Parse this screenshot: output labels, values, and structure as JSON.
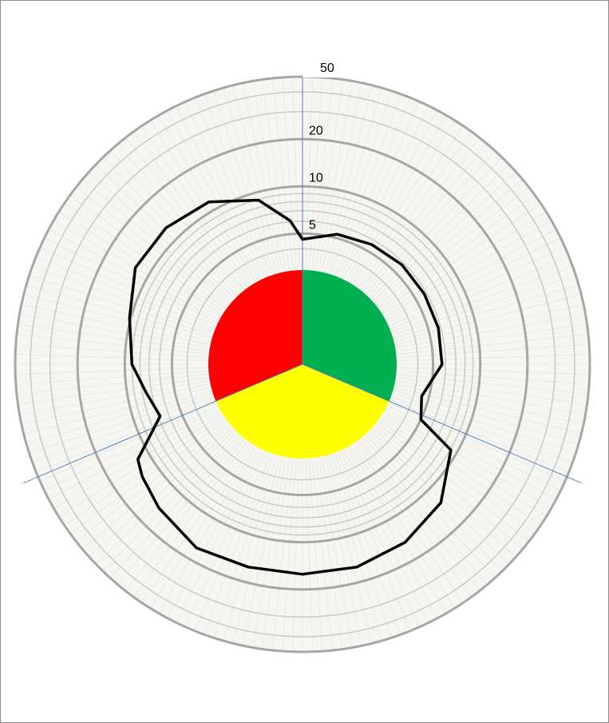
{
  "chart_data": [
    {
      "type": "pie",
      "values": [
        31.4,
        37.2,
        31.4
      ],
      "colors": [
        "#00b050",
        "#ffff00",
        "#ff0000"
      ]
    },
    {
      "type": "polar",
      "rscale": "log",
      "rlim": [
        3,
        50
      ],
      "rticks": [
        5,
        10,
        20,
        50
      ],
      "minor_rticks": [
        4,
        6,
        7,
        8,
        9,
        30,
        40
      ],
      "series": [
        {
          "color": "#000000",
          "x": [
            0,
            15,
            30,
            45,
            60,
            75,
            90,
            105,
            115,
            120,
            135,
            150,
            165,
            180,
            195,
            210,
            225,
            235,
            240,
            250,
            260,
            270,
            285,
            300,
            315,
            330,
            345,
            355
          ],
          "values": [
            4.6,
            5.3,
            5.6,
            5.8,
            5.8,
            5.8,
            5.7,
            4.5,
            5,
            9.1,
            13,
            15,
            16,
            16,
            16,
            16.5,
            14.5,
            13,
            12,
            6.8,
            7.6,
            9,
            10.2,
            12.5,
            12.5,
            11.5,
            8.9,
            6.1
          ]
        }
      ]
    }
  ]
}
